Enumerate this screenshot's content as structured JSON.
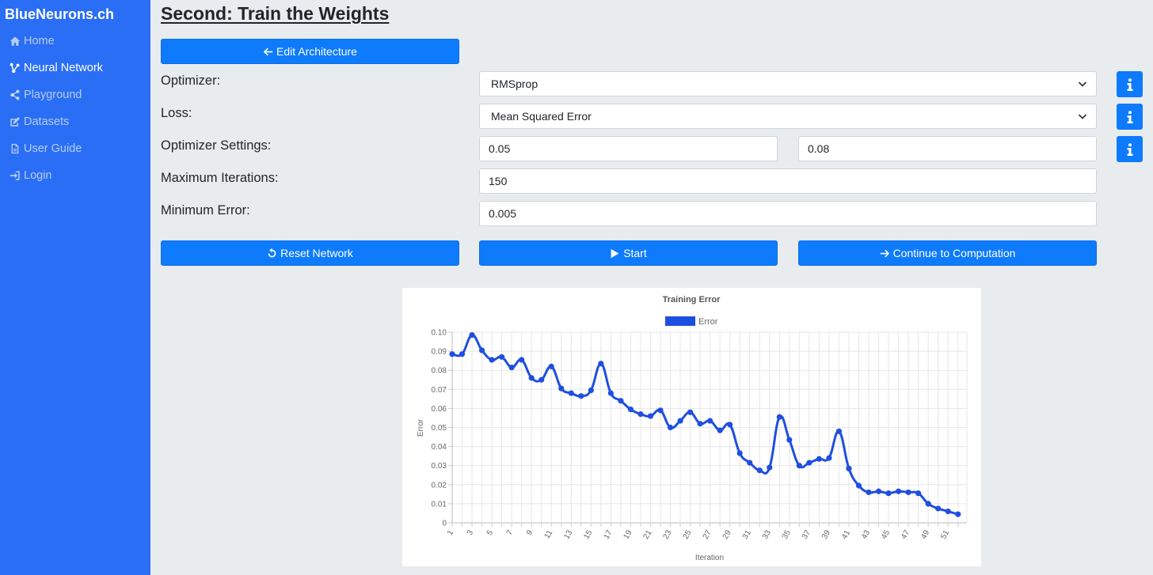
{
  "sidebar": {
    "brand": "BlueNeurons.ch",
    "items": [
      {
        "label": "Home",
        "icon": "home-icon"
      },
      {
        "label": "Neural Network",
        "icon": "network-icon"
      },
      {
        "label": "Playground",
        "icon": "share-nodes-icon"
      },
      {
        "label": "Datasets",
        "icon": "edit-icon"
      },
      {
        "label": "User Guide",
        "icon": "file-icon"
      },
      {
        "label": "Login",
        "icon": "sign-in-icon"
      }
    ],
    "active_index": 1
  },
  "page": {
    "title": "Second: Train the Weights",
    "edit_architecture_label": "Edit Architecture"
  },
  "form": {
    "optimizer_label": "Optimizer:",
    "optimizer_value": "RMSprop",
    "loss_label": "Loss:",
    "loss_value": "Mean Squared Error",
    "settings_label": "Optimizer Settings:",
    "settings_value_1": "0.05",
    "settings_value_2": "0.08",
    "max_iter_label": "Maximum Iterations:",
    "max_iter_value": "150",
    "min_error_label": "Minimum Error:",
    "min_error_value": "0.005"
  },
  "actions": {
    "reset_label": "Reset Network",
    "start_label": "Start",
    "continue_label": "Continue to Computation"
  },
  "colors": {
    "sidebar": "#2a6ef5",
    "button": "#0d7bfb",
    "line": "#1f4fe0"
  },
  "chart_data": {
    "type": "line",
    "title": "Training Error",
    "legend": [
      "Error"
    ],
    "legend_position": "top",
    "xlabel": "Iteration",
    "ylabel": "Error",
    "ylim": [
      0,
      0.1
    ],
    "yticks": [
      "0",
      "0.01",
      "0.02",
      "0.03",
      "0.04",
      "0.05",
      "0.06",
      "0.07",
      "0.08",
      "0.09",
      "0.10"
    ],
    "x": [
      1,
      2,
      3,
      4,
      5,
      6,
      7,
      8,
      9,
      10,
      11,
      12,
      13,
      14,
      15,
      16,
      17,
      18,
      19,
      20,
      21,
      22,
      23,
      24,
      25,
      26,
      27,
      28,
      29,
      30,
      31,
      32,
      33,
      34,
      35,
      36,
      37,
      38,
      39,
      40,
      41,
      42,
      43,
      44,
      45,
      46,
      47,
      48,
      49,
      50,
      51,
      52
    ],
    "xtick_labels": [
      "1",
      "3",
      "5",
      "7",
      "9",
      "11",
      "13",
      "15",
      "17",
      "19",
      "21",
      "23",
      "25",
      "27",
      "29",
      "31",
      "33",
      "35",
      "37",
      "39",
      "41",
      "43",
      "45",
      "47",
      "49",
      "51"
    ],
    "grid": true,
    "series": [
      {
        "name": "Error",
        "values": [
          0.0885,
          0.0885,
          0.0985,
          0.0905,
          0.0855,
          0.087,
          0.0815,
          0.0855,
          0.076,
          0.075,
          0.082,
          0.0705,
          0.068,
          0.0665,
          0.0695,
          0.0835,
          0.068,
          0.064,
          0.0595,
          0.057,
          0.056,
          0.059,
          0.05,
          0.0535,
          0.058,
          0.052,
          0.0535,
          0.0485,
          0.0515,
          0.0365,
          0.0315,
          0.0275,
          0.029,
          0.0555,
          0.0435,
          0.03,
          0.0315,
          0.0335,
          0.034,
          0.048,
          0.0285,
          0.0195,
          0.016,
          0.0165,
          0.0155,
          0.0165,
          0.016,
          0.0155,
          0.01,
          0.0075,
          0.006,
          0.0045
        ]
      }
    ]
  }
}
